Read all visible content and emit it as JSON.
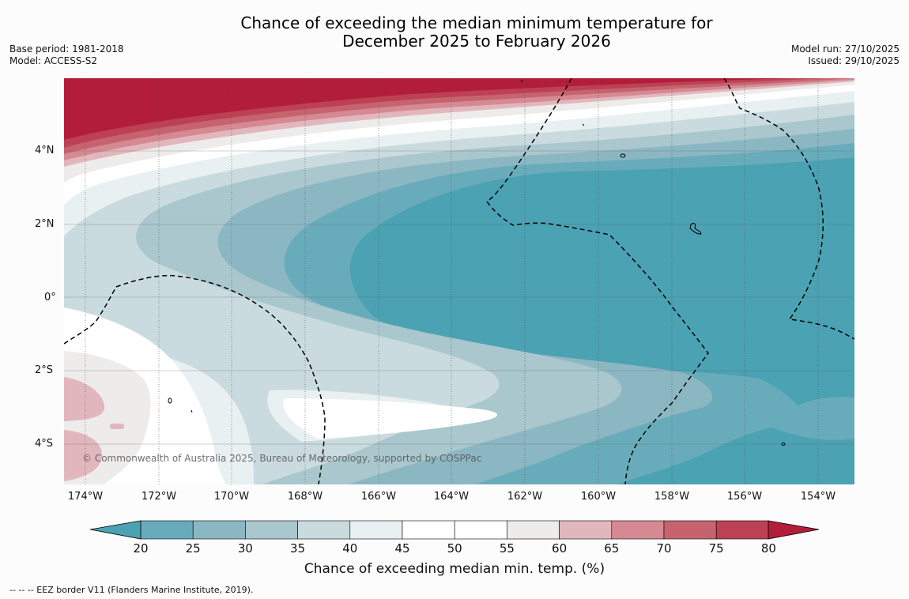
{
  "title": {
    "line1": "Chance of exceeding the median minimum temperature for",
    "line2": "December 2025 to February 2026"
  },
  "meta": {
    "base_period": "Base period: 1981-2018",
    "model": "Model: ACCESS-S2",
    "model_run": "Model run: 27/10/2025",
    "issued": "Issued: 29/10/2025"
  },
  "map": {
    "lat_labels": [
      "4°N",
      "2°N",
      "0°",
      "2°S",
      "4°S"
    ],
    "lon_labels": [
      "174°W",
      "172°W",
      "170°W",
      "168°W",
      "166°W",
      "164°W",
      "162°W",
      "160°W",
      "158°W",
      "156°W",
      "154°W"
    ],
    "copyright": "© Commonwealth of Australia 2025, Bureau of Meteorology, supported by COSPPac"
  },
  "colorbar": {
    "ticks": [
      "20",
      "25",
      "30",
      "35",
      "40",
      "45",
      "50",
      "55",
      "60",
      "65",
      "70",
      "75",
      "80"
    ],
    "colors": [
      "#4aa2b3",
      "#68acbb",
      "#8bb7c3",
      "#a9c7cd",
      "#cadbdf",
      "#e9f0f1",
      "#ffffff",
      "#ffffff",
      "#eeecea",
      "#e1b7bd",
      "#d58993",
      "#c6636f",
      "#bd4154",
      "#b21d3a"
    ],
    "label": "Chance of exceeding median min. temp. (%)"
  },
  "footnote": "--  --  -- EEZ border V11 (Flanders Marine Institute, 2019)."
}
